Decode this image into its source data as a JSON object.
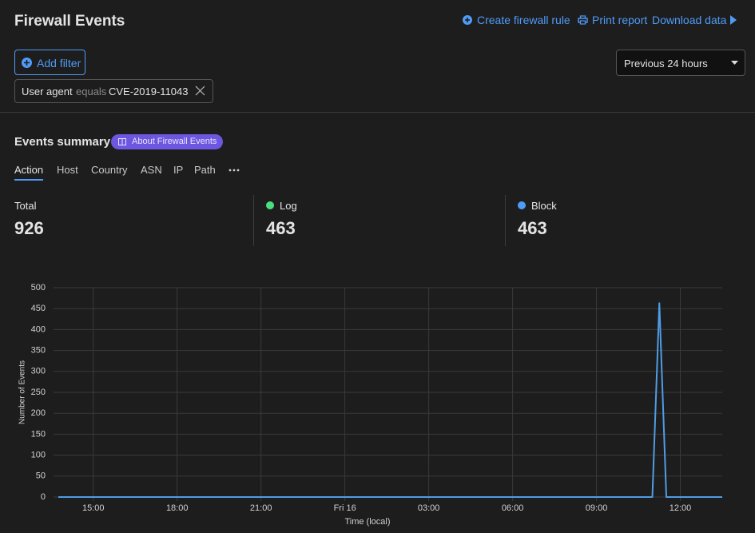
{
  "header": {
    "title": "Firewall Events",
    "actions": [
      "Create firewall rule",
      "Print report",
      "Download data"
    ]
  },
  "filters": {
    "add_button": "Add filter",
    "chip": {
      "field": "User agent",
      "operator": "equals",
      "value": "CVE-2019-11043"
    },
    "time_range": "Previous 24 hours"
  },
  "summary": {
    "title": "Events summary",
    "badge": "About Firewall Events",
    "tabs": [
      "Action",
      "Host",
      "Country",
      "ASN",
      "IP",
      "Path"
    ],
    "stats": [
      {
        "label": "Total",
        "value": 926
      },
      {
        "label": "Log",
        "value": 463,
        "color": "#4ade80"
      },
      {
        "label": "Block",
        "value": 463,
        "color": "#4e9cf5"
      }
    ]
  },
  "chart_data": {
    "type": "line",
    "xlabel": "Time (local)",
    "ylabel": "Number of Events",
    "x": [
      13.75,
      35.0,
      35.25,
      35.5,
      37.5
    ],
    "values": [
      0,
      0,
      463,
      0,
      0
    ],
    "color": "#4f9de6",
    "xlim": [
      13.75,
      37.5
    ],
    "xticks": [
      {
        "value": 15,
        "label": "15:00"
      },
      {
        "value": 18,
        "label": "18:00"
      },
      {
        "value": 21,
        "label": "21:00"
      },
      {
        "value": 24,
        "label": "Fri 16"
      },
      {
        "value": 27,
        "label": "03:00"
      },
      {
        "value": 30,
        "label": "06:00"
      },
      {
        "value": 33,
        "label": "09:00"
      },
      {
        "value": 36,
        "label": "12:00"
      }
    ],
    "ylim": [
      0,
      500
    ],
    "yticks": [
      0,
      50,
      100,
      150,
      200,
      250,
      300,
      350,
      400,
      450,
      500
    ],
    "grid": true
  }
}
